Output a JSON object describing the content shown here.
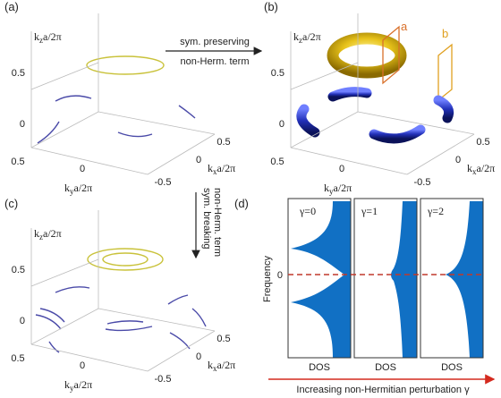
{
  "panels": [
    {
      "label": "(a)",
      "kz": {
        "k": "k",
        "sub": "z",
        "rest": "a/2π"
      },
      "z_ticks": [
        "0.5",
        "0"
      ],
      "ky": {
        "k": "k",
        "sub": "y",
        "rest": "a/2π"
      },
      "ky_ticks": [
        "0.5",
        "0"
      ],
      "kx": {
        "k": "k",
        "sub": "x",
        "rest": "a/2π"
      },
      "kx_ticks": [
        "-0.5",
        "0",
        "0.5"
      ]
    },
    {
      "label": "(b)",
      "kz": {
        "k": "k",
        "sub": "z",
        "rest": "a/2π"
      },
      "z_ticks": [
        "0.5",
        "0"
      ],
      "ky": {
        "k": "k",
        "sub": "y",
        "rest": "a/2π"
      },
      "ky_ticks": [
        "0.5",
        "0"
      ],
      "kx": {
        "k": "k",
        "sub": "x",
        "rest": "a/2π"
      },
      "kx_ticks": [
        "-0.5",
        "0",
        "0.5"
      ]
    },
    {
      "label": "(c)",
      "kz": {
        "k": "k",
        "sub": "z",
        "rest": "a/2π"
      },
      "z_ticks": [
        "0.5",
        "0"
      ],
      "ky": {
        "k": "k",
        "sub": "y",
        "rest": "a/2π"
      },
      "ky_ticks": [
        "0.5",
        "0"
      ],
      "kx": {
        "k": "k",
        "sub": "x",
        "rest": "a/2π"
      },
      "kx_ticks": [
        "-0.5",
        "0",
        "0.5"
      ]
    }
  ],
  "arrow_ab": [
    "sym. preserving",
    "non-Herm. term"
  ],
  "arrow_ac": [
    "sym. breaking",
    "non-Herm. term"
  ],
  "planes": [
    "a",
    "b"
  ],
  "panel_d": {
    "label": "(d)",
    "gammas": [
      "γ=0",
      "γ=1",
      "γ=2"
    ],
    "y_label": "Frequency",
    "y_tick": "0",
    "x_labels": [
      "DOS",
      "DOS",
      "DOS"
    ],
    "caption": "Increasing non-Hermitian perturbation γ"
  }
}
